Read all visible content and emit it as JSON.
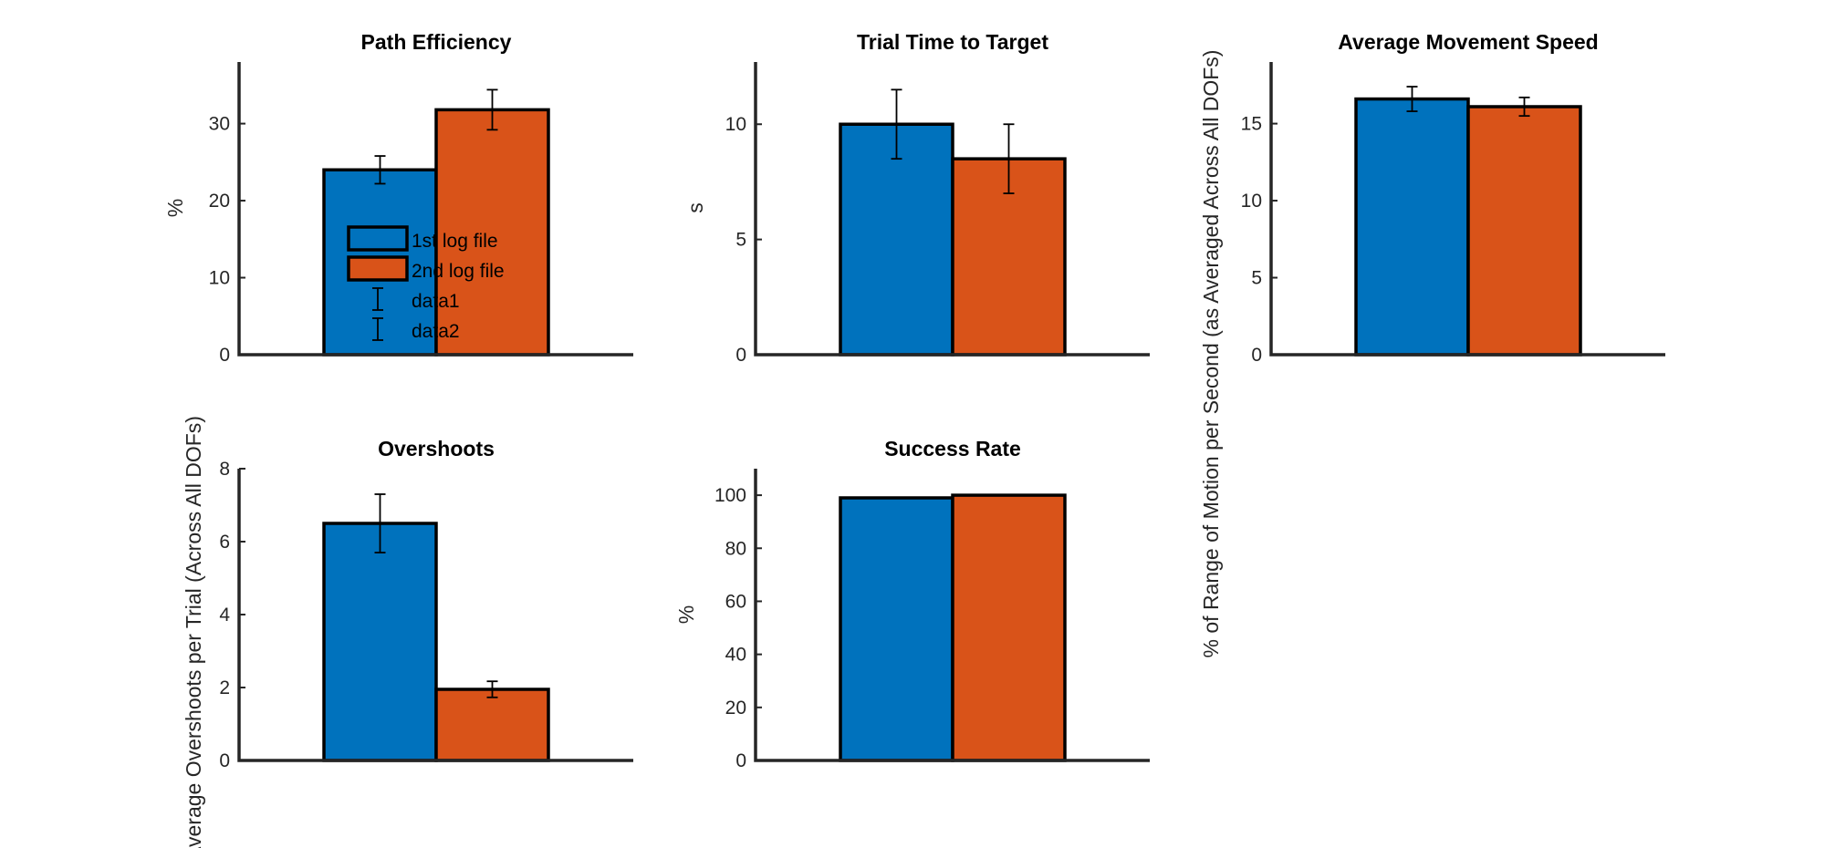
{
  "colors": {
    "series1": "#0072BD",
    "series2": "#D95319"
  },
  "legend": {
    "entries": [
      {
        "label": "1st log file",
        "kind": "bar",
        "series": 0
      },
      {
        "label": "2nd log file",
        "kind": "bar",
        "series": 1
      },
      {
        "label": "data1",
        "kind": "errorbar"
      },
      {
        "label": "data2",
        "kind": "errorbar"
      }
    ]
  },
  "chart_data": [
    {
      "type": "bar",
      "title": "Path Efficiency",
      "ylabel": "%",
      "ylim": [
        0,
        38
      ],
      "yticks": [
        0,
        10,
        20,
        30
      ],
      "series": [
        {
          "name": "1st log file",
          "value": 24.0,
          "error": 1.8
        },
        {
          "name": "2nd log file",
          "value": 31.8,
          "error": 2.6
        }
      ]
    },
    {
      "type": "bar",
      "title": "Trial Time to Target",
      "ylabel": "s",
      "ylim": [
        0,
        12.7
      ],
      "yticks": [
        0,
        5,
        10
      ],
      "series": [
        {
          "name": "1st log file",
          "value": 10.0,
          "error": 1.5
        },
        {
          "name": "2nd log file",
          "value": 8.5,
          "error": 1.5
        }
      ]
    },
    {
      "type": "bar",
      "title": "Average Movement Speed",
      "ylabel": "% of Range of Motion per Second (as Averaged Across All DOFs)",
      "ylim": [
        0,
        19
      ],
      "yticks": [
        0,
        5,
        10,
        15
      ],
      "series": [
        {
          "name": "1st log file",
          "value": 16.6,
          "error": 0.8
        },
        {
          "name": "2nd log file",
          "value": 16.1,
          "error": 0.6
        }
      ]
    },
    {
      "type": "bar",
      "title": "Overshoots",
      "ylabel": "Average Overshoots per Trial (Across All DOFs)",
      "ylim": [
        0,
        8
      ],
      "yticks": [
        0,
        2,
        4,
        6,
        8
      ],
      "series": [
        {
          "name": "1st log file",
          "value": 6.5,
          "error": 0.8
        },
        {
          "name": "2nd log file",
          "value": 1.95,
          "error": 0.22
        }
      ]
    },
    {
      "type": "bar",
      "title": "Success Rate",
      "ylabel": "%",
      "ylim": [
        0,
        110
      ],
      "yticks": [
        0,
        20,
        40,
        60,
        80,
        100
      ],
      "series": [
        {
          "name": "1st log file",
          "value": 99,
          "error": null
        },
        {
          "name": "2nd log file",
          "value": 100,
          "error": null
        }
      ]
    }
  ]
}
